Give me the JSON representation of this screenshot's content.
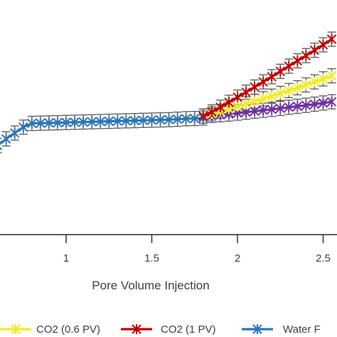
{
  "chart_data": {
    "type": "line",
    "xlabel": "Pore Volume Injection",
    "ylabel": "",
    "x_ticks": [
      "1",
      "1.5",
      "2",
      "2.5"
    ],
    "xlim": [
      0.6,
      2.55
    ],
    "ylim": [
      0,
      100
    ],
    "grid": false,
    "legend_position": "bottom",
    "series": [
      {
        "name": "CO2 (0.6 PV)",
        "color": "#f2ea2a",
        "marker": "star",
        "x": [
          1.8,
          1.85,
          1.9,
          1.95,
          2.0,
          2.05,
          2.1,
          2.15,
          2.2,
          2.25,
          2.3,
          2.35,
          2.4,
          2.45,
          2.5,
          2.55
        ],
        "y": [
          50.5,
          51.5,
          52.5,
          53.5,
          54.6,
          55.7,
          56.8,
          57.9,
          59.0,
          60.2,
          61.4,
          62.6,
          63.8,
          65.1,
          66.4,
          67.7
        ],
        "error": [
          1.5,
          1.5,
          1.5,
          1.5,
          1.5,
          1.5,
          1.5,
          1.5,
          1.5,
          1.5,
          1.5,
          1.5,
          1.5,
          1.5,
          1.5,
          1.5
        ]
      },
      {
        "name": "CO2 (1 PV)",
        "color": "#c00000",
        "marker": "star",
        "x": [
          1.8,
          1.85,
          1.9,
          1.95,
          2.0,
          2.05,
          2.1,
          2.15,
          2.2,
          2.25,
          2.3,
          2.35,
          2.4,
          2.45,
          2.5,
          2.55
        ],
        "y": [
          50.5,
          52.3,
          54.3,
          56.4,
          58.6,
          60.7,
          62.9,
          65.1,
          67.3,
          69.6,
          71.8,
          74.1,
          76.3,
          78.6,
          80.9,
          83.3
        ],
        "error": [
          1.5,
          1.5,
          1.5,
          1.5,
          1.5,
          1.5,
          1.5,
          1.5,
          1.5,
          1.5,
          1.5,
          1.5,
          1.5,
          1.5,
          1.5,
          1.5
        ]
      },
      {
        "name": "Water F",
        "color": "#2e75b6",
        "marker": "star",
        "x": [
          0.6,
          0.65,
          0.7,
          0.75,
          0.8,
          0.85,
          0.9,
          0.95,
          1.0,
          1.05,
          1.1,
          1.15,
          1.2,
          1.25,
          1.3,
          1.35,
          1.4,
          1.45,
          1.5,
          1.55,
          1.6,
          1.65,
          1.7,
          1.75,
          1.8
        ],
        "y": [
          38.0,
          40.8,
          43.3,
          45.8,
          47.4,
          47.5,
          47.6,
          47.7,
          47.8,
          47.9,
          48.0,
          48.1,
          48.2,
          48.3,
          48.4,
          48.5,
          48.6,
          48.7,
          48.8,
          48.9,
          49.0,
          49.2,
          49.4,
          49.5,
          49.7
        ],
        "error": [
          1.5,
          1.5,
          1.5,
          1.5,
          1.5,
          1.5,
          1.5,
          1.5,
          1.5,
          1.5,
          1.5,
          1.5,
          1.5,
          1.5,
          1.5,
          1.5,
          1.5,
          1.5,
          1.5,
          1.5,
          1.5,
          1.5,
          1.5,
          1.5,
          1.5
        ]
      },
      {
        "name": "",
        "color": "#7030a0",
        "marker": "star",
        "x": [
          1.8,
          1.85,
          1.9,
          1.95,
          2.0,
          2.05,
          2.1,
          2.15,
          2.2,
          2.25,
          2.3,
          2.35,
          2.4,
          2.45,
          2.5,
          2.55
        ],
        "y": [
          50.5,
          50.8,
          51.1,
          51.4,
          51.8,
          52.2,
          52.6,
          53.0,
          53.4,
          53.8,
          54.3,
          54.7,
          55.1,
          55.6,
          56.1,
          56.6
        ],
        "error": [
          1.5,
          1.5,
          1.5,
          1.5,
          1.5,
          1.5,
          1.5,
          1.5,
          1.5,
          1.5,
          1.5,
          1.5,
          1.5,
          1.5,
          1.5,
          1.5
        ]
      }
    ]
  }
}
